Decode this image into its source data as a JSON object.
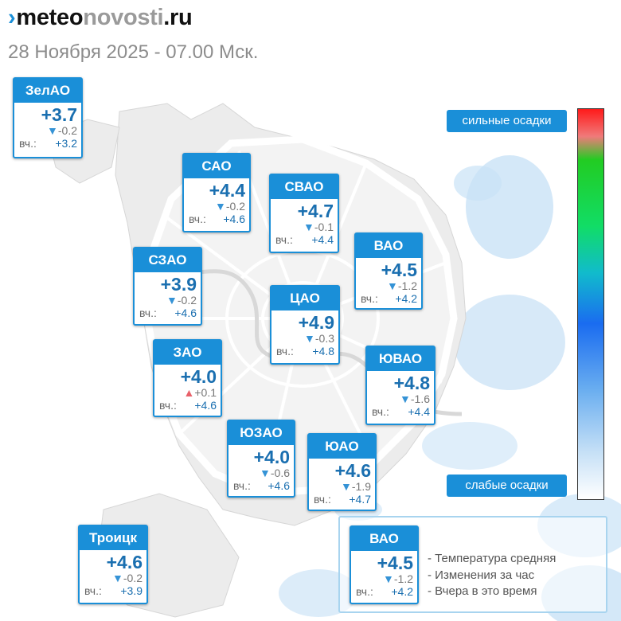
{
  "brand": {
    "mark": "›",
    "part1": "meteo",
    "part2": "novosti",
    "part3": ".ru"
  },
  "date": "28 Ноября 2025 - 07.00 Мск.",
  "yesterday_label": "вч.:",
  "districts": [
    {
      "name": "ЗелАО",
      "temp": "+3.7",
      "change": "-0.2",
      "trend": "down",
      "yesterday": "+3.2"
    },
    {
      "name": "САО",
      "temp": "+4.4",
      "change": "-0.2",
      "trend": "down",
      "yesterday": "+4.6"
    },
    {
      "name": "СВАО",
      "temp": "+4.7",
      "change": "-0.1",
      "trend": "down",
      "yesterday": "+4.4"
    },
    {
      "name": "ВАО",
      "temp": "+4.5",
      "change": "-1.2",
      "trend": "down",
      "yesterday": "+4.2"
    },
    {
      "name": "СЗАО",
      "temp": "+3.9",
      "change": "-0.2",
      "trend": "down",
      "yesterday": "+4.6"
    },
    {
      "name": "ЦАО",
      "temp": "+4.9",
      "change": "-0.3",
      "trend": "down",
      "yesterday": "+4.8"
    },
    {
      "name": "ЗАО",
      "temp": "+4.0",
      "change": "+0.1",
      "trend": "up",
      "yesterday": "+4.6"
    },
    {
      "name": "ЮВАО",
      "temp": "+4.8",
      "change": "-1.6",
      "trend": "down",
      "yesterday": "+4.4"
    },
    {
      "name": "ЮЗАО",
      "temp": "+4.0",
      "change": "-0.6",
      "trend": "down",
      "yesterday": "+4.6"
    },
    {
      "name": "ЮАО",
      "temp": "+4.6",
      "change": "-1.9",
      "trend": "down",
      "yesterday": "+4.7"
    },
    {
      "name": "Троицк",
      "temp": "+4.6",
      "change": "-0.2",
      "trend": "down",
      "yesterday": "+3.9"
    }
  ],
  "scale": {
    "top_label": "сильные осадки",
    "bottom_label": "слабые осадки"
  },
  "legend": {
    "sample": {
      "name": "ВАО",
      "temp": "+4.5",
      "change": "-1.2",
      "trend": "down",
      "yesterday": "+4.2"
    },
    "lines": [
      "- Температура средняя",
      "- Изменения за час",
      "- Вчера в это время"
    ]
  },
  "icons": {
    "down": "▼",
    "up": "▲"
  },
  "colors": {
    "accent": "#1a8fd8",
    "temp_text": "#1a6fb0",
    "trend_down": "#3593d6",
    "trend_up": "#e8616a",
    "precip_light": "#bcdcf4"
  }
}
